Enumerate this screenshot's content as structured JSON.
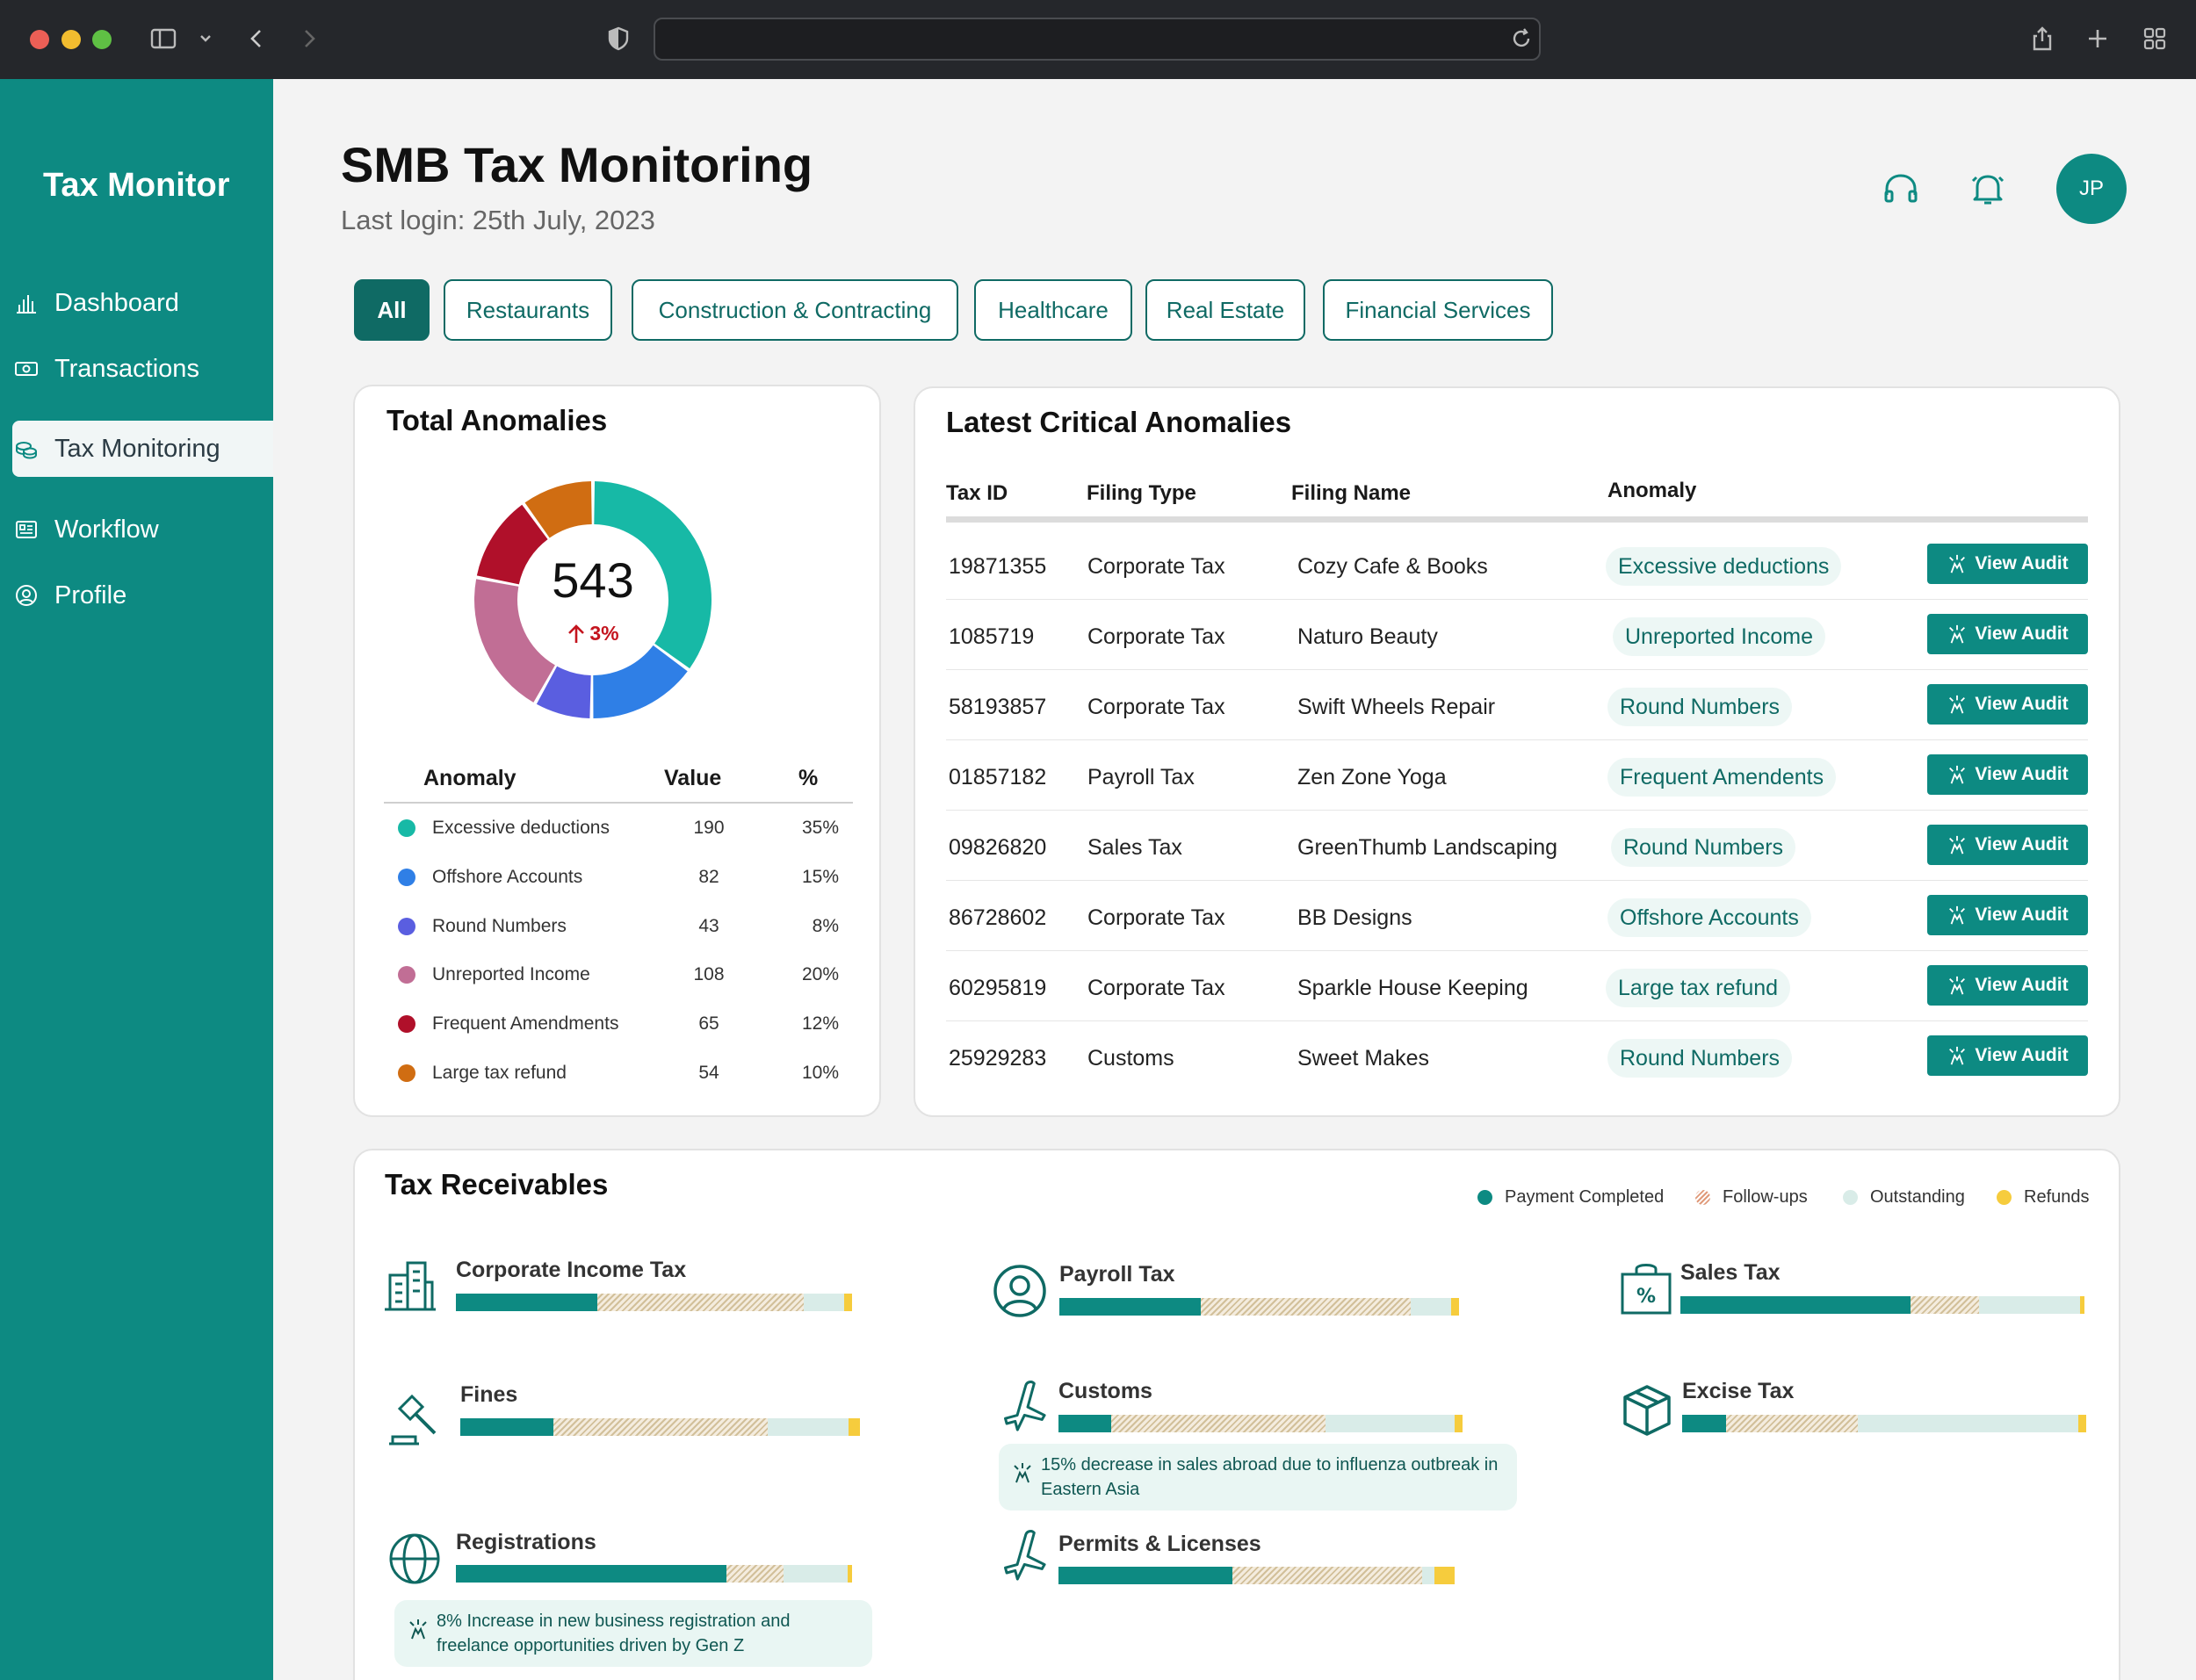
{
  "app": {
    "brand": "Tax Monitor",
    "title": "SMB Tax Monitoring",
    "last_login": "Last login: 25th July, 2023",
    "avatar_initials": "JP",
    "accent_color": "#0d8a82"
  },
  "sidebar": {
    "items": [
      {
        "label": "Dashboard",
        "icon": "bar-chart-icon"
      },
      {
        "label": "Transactions",
        "icon": "money-icon"
      },
      {
        "label": "Tax Monitoring",
        "icon": "coins-icon"
      },
      {
        "label": "Workflow",
        "icon": "workflow-icon"
      },
      {
        "label": "Profile",
        "icon": "profile-icon"
      }
    ]
  },
  "filters": [
    "All",
    "Restaurants",
    "Construction & Contracting",
    "Healthcare",
    "Real Estate",
    "Financial Services"
  ],
  "total_anomalies": {
    "title": "Total Anomalies",
    "total": "543",
    "change": "3%",
    "headers": {
      "anomaly": "Anomaly",
      "value": "Value",
      "pct": "%"
    },
    "rows": [
      {
        "name": "Excessive deductions",
        "value": "190",
        "pct": "35%",
        "color": "#17b9a6"
      },
      {
        "name": "Offshore Accounts",
        "value": "82",
        "pct": "15%",
        "color": "#2f7fe6"
      },
      {
        "name": "Round Numbers",
        "value": "43",
        "pct": "8%",
        "color": "#5a5ee0"
      },
      {
        "name": "Unreported Income",
        "value": "108",
        "pct": "20%",
        "color": "#c16e95"
      },
      {
        "name": "Frequent Amendments",
        "value": "65",
        "pct": "12%",
        "color": "#b0102a"
      },
      {
        "name": "Large tax refund",
        "value": "54",
        "pct": "10%",
        "color": "#d06d12"
      }
    ]
  },
  "chart_data": {
    "type": "pie",
    "categories": [
      "Excessive deductions",
      "Offshore Accounts",
      "Round Numbers",
      "Unreported Income",
      "Frequent Amendments",
      "Large tax refund"
    ],
    "values": [
      190,
      82,
      43,
      108,
      65,
      54
    ],
    "colors": [
      "#17b9a6",
      "#2f7fe6",
      "#5a5ee0",
      "#c16e95",
      "#b0102a",
      "#d06d12"
    ],
    "title": "Total Anomalies"
  },
  "critical": {
    "title": "Latest Critical Anomalies",
    "headers": {
      "tax_id": "Tax ID",
      "filing_type": "Filing Type",
      "filing_name": "Filing Name",
      "anomaly": "Anomaly"
    },
    "button_label": "View Audit",
    "rows": [
      {
        "tax_id": "19871355",
        "type": "Corporate Tax",
        "name": "Cozy Cafe & Books",
        "anomaly": "Excessive deductions"
      },
      {
        "tax_id": "1085719",
        "type": "Corporate Tax",
        "name": "Naturo Beauty",
        "anomaly": "Unreported Income"
      },
      {
        "tax_id": "58193857",
        "type": "Corporate Tax",
        "name": "Swift Wheels Repair",
        "anomaly": "Round Numbers"
      },
      {
        "tax_id": "01857182",
        "type": "Payroll Tax",
        "name": "Zen Zone Yoga",
        "anomaly": "Frequent Amendents"
      },
      {
        "tax_id": "09826820",
        "type": "Sales Tax",
        "name": "GreenThumb Landscaping",
        "anomaly": "Round Numbers"
      },
      {
        "tax_id": "86728602",
        "type": "Corporate Tax",
        "name": "BB Designs",
        "anomaly": "Offshore Accounts"
      },
      {
        "tax_id": "60295819",
        "type": "Corporate Tax",
        "name": "Sparkle House Keeping",
        "anomaly": "Large tax refund"
      },
      {
        "tax_id": "25929283",
        "type": "Customs",
        "name": "Sweet Makes",
        "anomaly": "Round Numbers"
      }
    ]
  },
  "receivables": {
    "title": "Tax Receivables",
    "legend": [
      "Payment Completed",
      "Follow-ups",
      "Outstanding",
      "Refunds"
    ],
    "items": [
      {
        "label": "Corporate Income Tax",
        "icon": "building-icon",
        "shares": [
          0.35,
          0.51,
          0.1,
          0.02
        ]
      },
      {
        "label": "Payroll Tax",
        "icon": "person-icon",
        "shares": [
          0.35,
          0.52,
          0.1,
          0.02
        ]
      },
      {
        "label": "Sales Tax",
        "icon": "shopping-bag-percent-icon",
        "shares": [
          0.57,
          0.17,
          0.25,
          0.01
        ]
      },
      {
        "label": "Fines",
        "icon": "gavel-icon",
        "shares": [
          0.23,
          0.53,
          0.2,
          0.03
        ]
      },
      {
        "label": "Customs",
        "icon": "airplane-icon",
        "shares": [
          0.13,
          0.53,
          0.32,
          0.02
        ]
      },
      {
        "label": "Excise Tax",
        "icon": "package-icon",
        "shares": [
          0.11,
          0.33,
          0.55,
          0.02
        ]
      },
      {
        "label": "Registrations",
        "icon": "globe-icon",
        "shares": [
          0.67,
          0.14,
          0.16,
          0.01
        ]
      },
      {
        "label": "Permits & Licenses",
        "icon": "airplane-icon",
        "shares": [
          0.43,
          0.47,
          0.03,
          0.05
        ]
      }
    ],
    "notes": {
      "customs": "15% decrease in sales abroad due to influenza outbreak in Eastern Asia",
      "registrations": "8% Increase in new business registration and freelance opportunities driven by Gen Z"
    }
  }
}
